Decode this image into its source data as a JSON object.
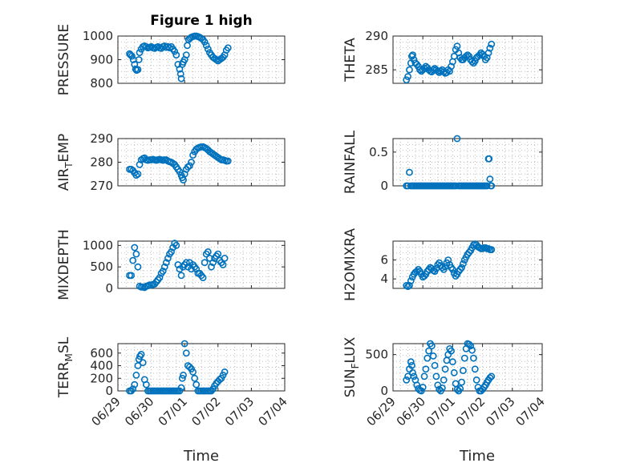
{
  "title": "Figure 1 high",
  "xlabel": "Time",
  "x_ticks": [
    "06/29",
    "06/30",
    "07/01",
    "07/02",
    "07/03",
    "07/04"
  ],
  "marker_color": "#0072BD",
  "chart_data": [
    {
      "type": "scatter",
      "ylabel": "PRESSURE",
      "ylim": [
        800,
        1000
      ],
      "yticks": [
        800,
        900,
        1000
      ],
      "xlim": [
        0,
        5
      ],
      "grid": true,
      "title": "Figure 1 high",
      "x": [
        0.35,
        0.38,
        0.42,
        0.46,
        0.5,
        0.53,
        0.56,
        0.6,
        0.63,
        0.65,
        0.7,
        0.75,
        0.8,
        0.85,
        0.9,
        0.95,
        1.0,
        1.05,
        1.1,
        1.15,
        1.2,
        1.25,
        1.3,
        1.35,
        1.4,
        1.45,
        1.5,
        1.55,
        1.6,
        1.65,
        1.7,
        1.75,
        1.8,
        1.85,
        1.88,
        1.9,
        1.93,
        1.96,
        2.0,
        2.05,
        2.08,
        2.12,
        2.16,
        2.2,
        2.25,
        2.3,
        2.35,
        2.4,
        2.45,
        2.5,
        2.55,
        2.6,
        2.65,
        2.7,
        2.75,
        2.8,
        2.85,
        2.9,
        2.95,
        3.0,
        3.05,
        3.1,
        3.15,
        3.2,
        3.25,
        3.3
      ],
      "y": [
        925,
        920,
        915,
        900,
        880,
        860,
        855,
        858,
        900,
        930,
        945,
        955,
        958,
        955,
        950,
        952,
        955,
        950,
        948,
        952,
        955,
        950,
        948,
        955,
        958,
        952,
        955,
        950,
        955,
        945,
        935,
        920,
        880,
        860,
        840,
        820,
        880,
        890,
        900,
        920,
        960,
        985,
        990,
        995,
        998,
        1000,
        1000,
        998,
        995,
        990,
        985,
        975,
        960,
        945,
        930,
        920,
        910,
        905,
        900,
        895,
        900,
        905,
        910,
        920,
        940,
        950
      ]
    },
    {
      "type": "scatter",
      "ylabel": "THETA",
      "ylim": [
        283,
        290
      ],
      "yticks": [
        285,
        290
      ],
      "xlim": [
        0,
        5
      ],
      "grid": true,
      "x": [
        0.45,
        0.5,
        0.55,
        0.6,
        0.63,
        0.66,
        0.7,
        0.75,
        0.8,
        0.85,
        0.9,
        0.95,
        1.0,
        1.05,
        1.1,
        1.15,
        1.2,
        1.25,
        1.3,
        1.35,
        1.4,
        1.45,
        1.5,
        1.55,
        1.6,
        1.65,
        1.7,
        1.75,
        1.8,
        1.85,
        1.9,
        1.95,
        2.0,
        2.05,
        2.1,
        2.15,
        2.2,
        2.25,
        2.3,
        2.35,
        2.4,
        2.45,
        2.5,
        2.55,
        2.6,
        2.65,
        2.7,
        2.75,
        2.8,
        2.85,
        2.9,
        2.95,
        3.0,
        3.05,
        3.1,
        3.15,
        3.2,
        3.25,
        3.3
      ],
      "y": [
        283.5,
        284,
        285,
        286,
        287,
        287.2,
        286.5,
        286,
        285.8,
        285.5,
        285,
        284.8,
        285,
        285.2,
        285.5,
        285.3,
        285,
        284.8,
        284.7,
        285,
        285.2,
        285,
        284.8,
        284.6,
        284.8,
        285,
        284.7,
        284.5,
        284.6,
        285,
        284.8,
        285.5,
        286.2,
        287,
        288,
        288.5,
        287.5,
        286.8,
        286.5,
        286.5,
        286.8,
        287,
        287.2,
        287,
        286.5,
        286.2,
        286,
        286.3,
        286.8,
        287,
        287.2,
        287.5,
        287.3,
        287,
        286.5,
        286.8,
        287.5,
        288.2,
        288.8
      ]
    },
    {
      "type": "scatter",
      "ylabel": "AIR_TEMP",
      "ylim": [
        270,
        290
      ],
      "yticks": [
        270,
        280,
        290
      ],
      "xlim": [
        0,
        5
      ],
      "grid": true,
      "x": [
        0.35,
        0.4,
        0.45,
        0.5,
        0.55,
        0.6,
        0.65,
        0.7,
        0.75,
        0.8,
        0.85,
        0.9,
        0.95,
        1.0,
        1.05,
        1.1,
        1.15,
        1.2,
        1.25,
        1.3,
        1.35,
        1.4,
        1.45,
        1.5,
        1.55,
        1.6,
        1.65,
        1.7,
        1.75,
        1.8,
        1.85,
        1.9,
        1.93,
        1.96,
        2.0,
        2.05,
        2.1,
        2.15,
        2.2,
        2.25,
        2.3,
        2.35,
        2.4,
        2.45,
        2.5,
        2.55,
        2.6,
        2.65,
        2.7,
        2.75,
        2.8,
        2.85,
        2.9,
        2.95,
        3.0,
        3.05,
        3.1,
        3.15,
        3.2,
        3.25,
        3.3
      ],
      "y": [
        277,
        277,
        276.5,
        275.5,
        274.5,
        275,
        279,
        281,
        281.5,
        281.8,
        281,
        280.8,
        281,
        281,
        281.2,
        281,
        280.8,
        281,
        281.2,
        281,
        280.8,
        281,
        281,
        280.5,
        280.2,
        280,
        279.5,
        279,
        278,
        277,
        276,
        274.5,
        273.5,
        272.5,
        275,
        277,
        278,
        278.5,
        280,
        283,
        284.5,
        285.5,
        286,
        286.3,
        286.5,
        286.5,
        286.2,
        285.8,
        285.2,
        284.5,
        284,
        283.5,
        283,
        282.5,
        282,
        281.5,
        281,
        281,
        280.8,
        280.5,
        280.5
      ]
    },
    {
      "type": "scatter",
      "ylabel": "RAINFALL",
      "ylim": [
        0,
        0.7
      ],
      "yticks": [
        0,
        0.5
      ],
      "xlim": [
        0,
        5
      ],
      "grid": true,
      "x": [
        0.45,
        0.5,
        0.55,
        0.6,
        0.65,
        0.7,
        0.75,
        0.8,
        0.85,
        0.9,
        0.95,
        1.0,
        1.05,
        1.1,
        1.15,
        1.2,
        1.25,
        1.3,
        1.35,
        1.4,
        1.45,
        1.5,
        1.55,
        1.6,
        1.65,
        1.7,
        1.75,
        1.8,
        1.85,
        1.9,
        1.95,
        2.0,
        2.05,
        2.1,
        2.15,
        2.2,
        2.25,
        2.3,
        2.35,
        2.4,
        2.45,
        2.5,
        2.55,
        2.6,
        2.65,
        2.7,
        2.75,
        2.8,
        2.85,
        2.9,
        2.95,
        3.0,
        3.05,
        3.1,
        3.15,
        3.2,
        3.22,
        3.25,
        3.28,
        3.3
      ],
      "y": [
        0,
        0,
        0.2,
        0,
        0,
        0,
        0,
        0,
        0,
        0,
        0,
        0,
        0,
        0,
        0,
        0,
        0,
        0,
        0,
        0,
        0,
        0,
        0,
        0,
        0,
        0,
        0,
        0,
        0,
        0,
        0,
        0,
        0,
        0,
        0.7,
        0,
        0,
        0,
        0,
        0,
        0,
        0,
        0,
        0,
        0,
        0,
        0,
        0,
        0,
        0,
        0,
        0,
        0,
        0,
        0,
        0.4,
        0.4,
        0.1,
        0,
        0
      ]
    },
    {
      "type": "scatter",
      "ylabel": "MIXDEPTH",
      "ylim": [
        0,
        1100
      ],
      "yticks": [
        0,
        500,
        1000
      ],
      "xlim": [
        0,
        5
      ],
      "grid": true,
      "x": [
        0.35,
        0.4,
        0.45,
        0.5,
        0.55,
        0.6,
        0.65,
        0.7,
        0.75,
        0.8,
        0.85,
        0.9,
        0.95,
        1.0,
        1.05,
        1.1,
        1.15,
        1.2,
        1.25,
        1.3,
        1.35,
        1.4,
        1.45,
        1.5,
        1.55,
        1.6,
        1.65,
        1.7,
        1.75,
        1.8,
        1.85,
        1.9,
        1.95,
        2.0,
        2.05,
        2.1,
        2.15,
        2.2,
        2.25,
        2.3,
        2.35,
        2.4,
        2.45,
        2.5,
        2.55,
        2.6,
        2.65,
        2.7,
        2.75,
        2.8,
        2.85,
        2.9,
        2.95,
        3.0,
        3.05,
        3.1,
        3.15,
        3.2
      ],
      "y": [
        300,
        300,
        650,
        950,
        800,
        500,
        50,
        30,
        30,
        20,
        50,
        60,
        80,
        80,
        90,
        100,
        150,
        200,
        250,
        350,
        400,
        500,
        600,
        700,
        800,
        850,
        950,
        1050,
        1000,
        550,
        450,
        300,
        500,
        550,
        600,
        500,
        600,
        450,
        550,
        500,
        450,
        350,
        350,
        300,
        250,
        600,
        800,
        850,
        700,
        500,
        600,
        700,
        750,
        800,
        650,
        600,
        550,
        700
      ]
    },
    {
      "type": "scatter",
      "ylabel": "H2OMIXRA",
      "ylim": [
        3,
        8
      ],
      "yticks": [
        4,
        6
      ],
      "xlim": [
        0,
        5
      ],
      "grid": true,
      "x": [
        0.45,
        0.5,
        0.55,
        0.6,
        0.65,
        0.7,
        0.75,
        0.8,
        0.85,
        0.9,
        0.95,
        1.0,
        1.05,
        1.1,
        1.15,
        1.2,
        1.25,
        1.3,
        1.35,
        1.4,
        1.45,
        1.5,
        1.55,
        1.6,
        1.65,
        1.7,
        1.75,
        1.8,
        1.85,
        1.9,
        1.95,
        2.0,
        2.05,
        2.1,
        2.15,
        2.2,
        2.25,
        2.3,
        2.35,
        2.4,
        2.45,
        2.5,
        2.55,
        2.6,
        2.65,
        2.7,
        2.75,
        2.8,
        2.85,
        2.9,
        2.95,
        3.0,
        3.05,
        3.1,
        3.15,
        3.2,
        3.25,
        3.3
      ],
      "y": [
        3.3,
        3.2,
        3.3,
        3.8,
        4.2,
        4.5,
        4.7,
        4.8,
        5,
        4.8,
        4.5,
        4.2,
        4.3,
        4.5,
        4.8,
        5,
        5.2,
        5.1,
        4.9,
        4.8,
        5.1,
        5.5,
        5.7,
        5.4,
        5.2,
        5,
        5.3,
        5.7,
        6,
        5.5,
        5.2,
        5,
        4.6,
        4.3,
        4.5,
        4.8,
        5,
        5.2,
        5.6,
        6,
        6.3,
        6.6,
        6.8,
        7,
        7.3,
        7.6,
        7.7,
        7.6,
        7.4,
        7.3,
        7.2,
        7.2,
        7.3,
        7.3,
        7.2,
        7.2,
        7.1,
        7.1
      ]
    },
    {
      "type": "scatter",
      "ylabel": "TERR_MSL",
      "ylim": [
        0,
        750
      ],
      "yticks": [
        0,
        200,
        400,
        600
      ],
      "xlim": [
        0,
        5
      ],
      "grid": true,
      "x": [
        0.35,
        0.4,
        0.45,
        0.5,
        0.55,
        0.6,
        0.63,
        0.66,
        0.7,
        0.75,
        0.8,
        0.85,
        0.9,
        0.95,
        1.0,
        1.05,
        1.1,
        1.15,
        1.2,
        1.25,
        1.3,
        1.35,
        1.4,
        1.45,
        1.5,
        1.55,
        1.6,
        1.65,
        1.7,
        1.75,
        1.8,
        1.85,
        1.9,
        1.93,
        1.96,
        2.0,
        2.05,
        2.1,
        2.15,
        2.2,
        2.25,
        2.3,
        2.35,
        2.4,
        2.45,
        2.5,
        2.55,
        2.6,
        2.65,
        2.7,
        2.75,
        2.8,
        2.85,
        2.9,
        2.95,
        3.0,
        3.05,
        3.1,
        3.15,
        3.2
      ],
      "y": [
        0,
        0,
        30,
        100,
        250,
        400,
        500,
        550,
        580,
        450,
        180,
        100,
        0,
        0,
        0,
        0,
        0,
        0,
        0,
        0,
        0,
        0,
        0,
        0,
        0,
        0,
        0,
        0,
        0,
        0,
        0,
        0,
        50,
        200,
        250,
        750,
        600,
        400,
        380,
        350,
        300,
        200,
        100,
        0,
        0,
        0,
        0,
        0,
        0,
        0,
        0,
        0,
        30,
        80,
        120,
        150,
        180,
        200,
        250,
        300
      ]
    },
    {
      "type": "scatter",
      "ylabel": "SUN_FLUX",
      "ylim": [
        0,
        650
      ],
      "yticks": [
        0,
        500
      ],
      "xlim": [
        0,
        5
      ],
      "grid": true,
      "x": [
        0.45,
        0.5,
        0.55,
        0.6,
        0.63,
        0.66,
        0.7,
        0.75,
        0.8,
        0.85,
        0.9,
        0.95,
        1.0,
        1.05,
        1.1,
        1.15,
        1.2,
        1.25,
        1.3,
        1.35,
        1.4,
        1.45,
        1.5,
        1.55,
        1.6,
        1.65,
        1.7,
        1.75,
        1.8,
        1.85,
        1.9,
        1.95,
        2.0,
        2.05,
        2.1,
        2.15,
        2.2,
        2.25,
        2.3,
        2.35,
        2.4,
        2.45,
        2.5,
        2.55,
        2.6,
        2.65,
        2.7,
        2.75,
        2.8,
        2.85,
        2.9,
        2.95,
        3.0,
        3.05,
        3.1,
        3.15,
        3.2,
        3.25,
        3.3
      ],
      "y": [
        150,
        200,
        300,
        400,
        350,
        250,
        200,
        150,
        80,
        30,
        10,
        0,
        50,
        200,
        300,
        450,
        550,
        650,
        620,
        480,
        350,
        200,
        80,
        20,
        0,
        40,
        150,
        300,
        420,
        500,
        580,
        550,
        400,
        250,
        100,
        20,
        0,
        30,
        120,
        280,
        450,
        580,
        650,
        640,
        620,
        560,
        450,
        300,
        150,
        50,
        0,
        0,
        20,
        50,
        80,
        120,
        150,
        180,
        200
      ]
    }
  ]
}
